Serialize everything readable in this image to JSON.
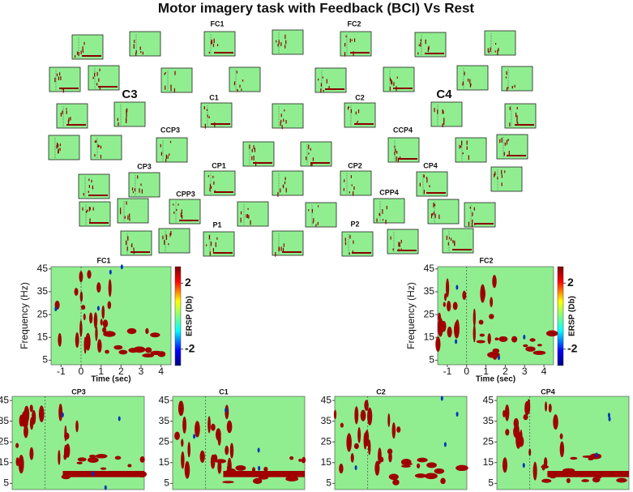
{
  "title": "Motor imagery task with Feedback (BCI) Vs Rest",
  "mini_map_labels": [
    "FC1",
    "FC2",
    "C3",
    "C4",
    "C1",
    "C2",
    "CCP3",
    "CCP4",
    "CP3",
    "CP1",
    "CP2",
    "CP4",
    "CPP3",
    "CPP4",
    "P1",
    "P2"
  ],
  "panels": [
    {
      "label": "FC1",
      "ylabel": "Frequency (Hz)",
      "xlabel": "Time (sec)",
      "xlim": [
        -1.5,
        4.5
      ],
      "ylim": [
        3,
        46
      ],
      "xticks": [
        -1,
        0,
        1,
        2,
        3,
        4
      ],
      "yticks": [
        5,
        15,
        25,
        35,
        45
      ],
      "colorbar": {
        "label": "ERSP (Db)",
        "lim": [
          -3,
          3
        ],
        "ticks": [
          2,
          -2
        ]
      }
    },
    {
      "label": "FC2",
      "ylabel": "Frequency (Hz)",
      "xlabel": "Time (sec)",
      "xlim": [
        -1.5,
        4.5
      ],
      "ylim": [
        3,
        46
      ],
      "xticks": [
        -1,
        0,
        1,
        2,
        3,
        4
      ],
      "yticks": [
        5,
        15,
        25,
        35,
        45
      ],
      "colorbar": {
        "label": "ERSP (Db)",
        "lim": [
          -3,
          3
        ],
        "ticks": [
          2,
          -2
        ]
      }
    },
    {
      "label": "CP3",
      "xlim": [
        -1.5,
        4.5
      ],
      "ylim": [
        2,
        47
      ],
      "yticks": [
        45,
        35,
        25,
        15,
        5
      ]
    },
    {
      "label": "C1",
      "xlim": [
        -1.5,
        4.5
      ],
      "ylim": [
        2,
        47
      ],
      "yticks": [
        45,
        35,
        25,
        15,
        5
      ]
    },
    {
      "label": "C2",
      "xlim": [
        -1.5,
        4.5
      ],
      "ylim": [
        2,
        47
      ],
      "yticks": [
        45,
        35,
        25,
        15,
        5
      ]
    },
    {
      "label": "CP4",
      "xlim": [
        -1.5,
        4.5
      ],
      "ylim": [
        2,
        47
      ],
      "yticks": [
        45,
        35,
        25,
        15,
        5
      ]
    }
  ]
}
